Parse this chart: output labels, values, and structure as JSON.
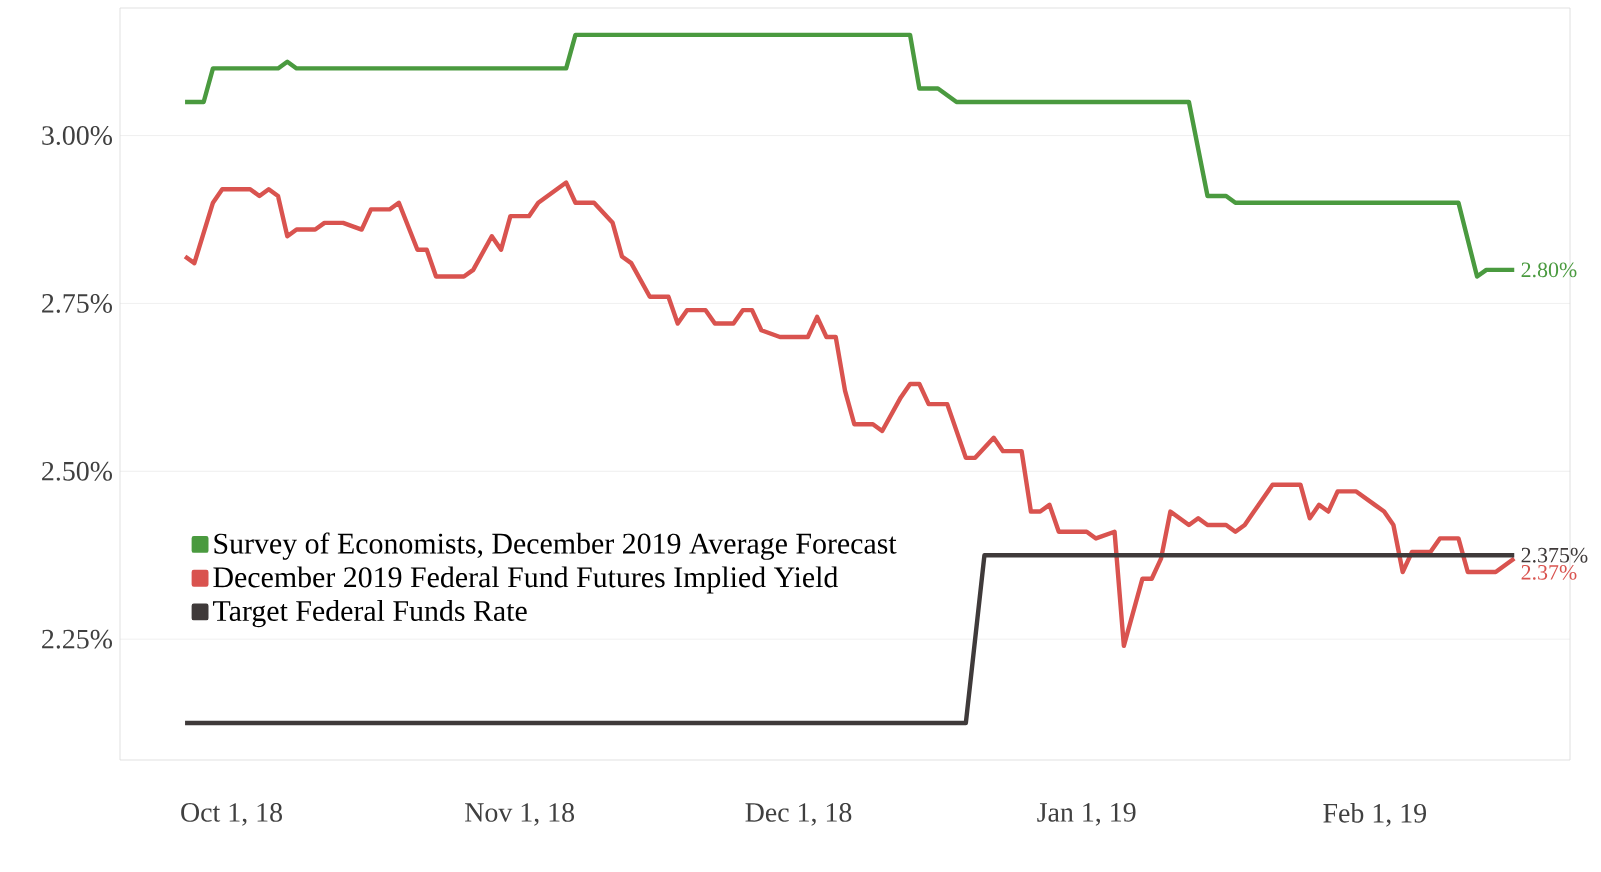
{
  "chart_data": {
    "type": "line",
    "xlim": [
      "2018-09-19",
      "2019-02-22"
    ],
    "ylim": [
      2.07,
      3.19
    ],
    "xticks": [
      {
        "value": "2018-10-01",
        "label": "Oct 1, 18"
      },
      {
        "value": "2018-11-01",
        "label": "Nov 1, 18"
      },
      {
        "value": "2018-12-01",
        "label": "Dec 1, 18"
      },
      {
        "value": "2019-01-01",
        "label": "Jan 1, 19"
      },
      {
        "value": "2019-02-01",
        "label": "Feb 1, 19"
      }
    ],
    "yticks": [
      {
        "value": 2.25,
        "label": "2.25%"
      },
      {
        "value": 2.5,
        "label": "2.50%"
      },
      {
        "value": 2.75,
        "label": "2.75%"
      },
      {
        "value": 3.0,
        "label": "3.00%"
      }
    ],
    "grid": "y",
    "legend": "bottom left",
    "marker": "none",
    "series": [
      {
        "name": "Survey of Economists, December 2019 Average Forecast",
        "color": "#4a9a3f",
        "x": [
          "2018-09-26",
          "2018-09-28",
          "2018-09-29",
          "2018-10-06",
          "2018-10-07",
          "2018-10-08",
          "2018-11-06",
          "2018-11-07",
          "2018-12-13",
          "2018-12-14",
          "2018-12-16",
          "2018-12-18",
          "2019-01-12",
          "2019-01-14",
          "2019-01-16",
          "2019-01-17",
          "2019-02-10",
          "2019-02-12",
          "2019-02-13",
          "2019-02-16"
        ],
        "values": [
          3.05,
          3.05,
          3.1,
          3.1,
          3.11,
          3.1,
          3.1,
          3.15,
          3.15,
          3.07,
          3.07,
          3.05,
          3.05,
          2.91,
          2.91,
          2.9,
          2.9,
          2.79,
          2.8,
          2.8
        ]
      },
      {
        "name": "December 2019 Federal Fund Futures Implied Yield",
        "color": "#d9534f",
        "x": [
          "2018-09-26",
          "2018-09-27",
          "2018-09-29",
          "2018-09-30",
          "2018-10-03",
          "2018-10-04",
          "2018-10-05",
          "2018-10-06",
          "2018-10-07",
          "2018-10-08",
          "2018-10-10",
          "2018-10-11",
          "2018-10-13",
          "2018-10-15",
          "2018-10-16",
          "2018-10-18",
          "2018-10-19",
          "2018-10-21",
          "2018-10-22",
          "2018-10-23",
          "2018-10-26",
          "2018-10-27",
          "2018-10-29",
          "2018-10-30",
          "2018-10-31",
          "2018-11-02",
          "2018-11-03",
          "2018-11-05",
          "2018-11-06",
          "2018-11-07",
          "2018-11-09",
          "2018-11-11",
          "2018-11-12",
          "2018-11-13",
          "2018-11-15",
          "2018-11-17",
          "2018-11-18",
          "2018-11-19",
          "2018-11-21",
          "2018-11-22",
          "2018-11-24",
          "2018-11-25",
          "2018-11-26",
          "2018-11-27",
          "2018-11-29",
          "2018-12-02",
          "2018-12-03",
          "2018-12-04",
          "2018-12-05",
          "2018-12-06",
          "2018-12-07",
          "2018-12-09",
          "2018-12-10",
          "2018-12-12",
          "2018-12-13",
          "2018-12-14",
          "2018-12-15",
          "2018-12-17",
          "2018-12-19",
          "2018-12-20",
          "2018-12-22",
          "2018-12-23",
          "2018-12-25",
          "2018-12-26",
          "2018-12-27",
          "2018-12-28",
          "2018-12-29",
          "2019-01-01",
          "2019-01-02",
          "2019-01-04",
          "2019-01-05",
          "2019-01-07",
          "2019-01-08",
          "2019-01-09",
          "2019-01-10",
          "2019-01-12",
          "2019-01-13",
          "2019-01-14",
          "2019-01-16",
          "2019-01-17",
          "2019-01-18",
          "2019-01-19",
          "2019-01-21",
          "2019-01-24",
          "2019-01-25",
          "2019-01-26",
          "2019-01-27",
          "2019-01-28",
          "2019-01-30",
          "2019-02-01",
          "2019-02-02",
          "2019-02-03",
          "2019-02-04",
          "2019-02-05",
          "2019-02-07",
          "2019-02-08",
          "2019-02-09",
          "2019-02-10",
          "2019-02-11",
          "2019-02-14",
          "2019-02-16"
        ],
        "values": [
          2.82,
          2.81,
          2.9,
          2.92,
          2.92,
          2.91,
          2.92,
          2.91,
          2.85,
          2.86,
          2.86,
          2.87,
          2.87,
          2.86,
          2.89,
          2.89,
          2.9,
          2.83,
          2.83,
          2.79,
          2.79,
          2.8,
          2.85,
          2.83,
          2.88,
          2.88,
          2.9,
          2.92,
          2.93,
          2.9,
          2.9,
          2.87,
          2.82,
          2.81,
          2.76,
          2.76,
          2.72,
          2.74,
          2.74,
          2.72,
          2.72,
          2.74,
          2.74,
          2.71,
          2.7,
          2.7,
          2.73,
          2.7,
          2.7,
          2.62,
          2.57,
          2.57,
          2.56,
          2.61,
          2.63,
          2.63,
          2.6,
          2.6,
          2.52,
          2.52,
          2.55,
          2.53,
          2.53,
          2.44,
          2.44,
          2.45,
          2.41,
          2.41,
          2.4,
          2.41,
          2.24,
          2.34,
          2.34,
          2.37,
          2.44,
          2.42,
          2.43,
          2.42,
          2.42,
          2.41,
          2.42,
          2.44,
          2.48,
          2.48,
          2.43,
          2.45,
          2.44,
          2.47,
          2.47,
          2.45,
          2.44,
          2.42,
          2.35,
          2.38,
          2.38,
          2.4,
          2.4,
          2.4,
          2.35,
          2.35,
          2.37
        ]
      },
      {
        "name": "Target Federal Funds Rate",
        "color": "#3f3a3a",
        "x": [
          "2018-09-26",
          "2018-12-19",
          "2018-12-21",
          "2019-02-16"
        ],
        "values": [
          2.125,
          2.125,
          2.375,
          2.375
        ]
      }
    ],
    "annotations": [
      {
        "text": "2.80%",
        "x": "2019-02-16",
        "y": 2.8
      },
      {
        "text": "2.375%",
        "x": "2019-02-16",
        "y": 2.375
      },
      {
        "text": "2.37%",
        "x": "2019-02-16",
        "y": 2.37
      }
    ]
  }
}
